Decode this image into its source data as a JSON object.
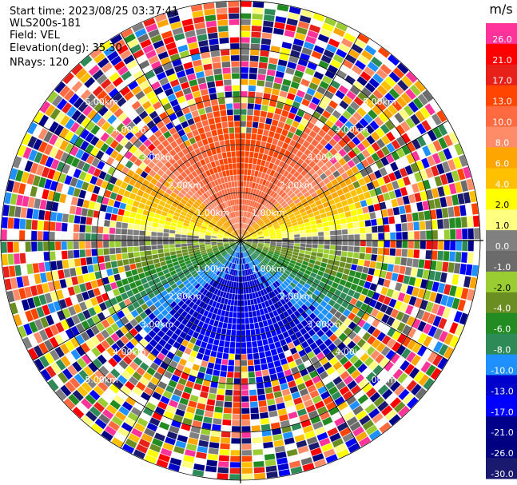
{
  "header": {
    "start_time": "Start time: 2023/08/25 03:37:41",
    "site": "WLS200s-181",
    "field": "Field: VEL",
    "elevation": "Elevation(deg): 35.30",
    "nrays": "NRays: 120"
  },
  "chart_data": {
    "type": "ppi",
    "field": "VEL",
    "n_rays": 120,
    "range_rings_km": [
      "1.00km",
      "2.00km",
      "3.00km",
      "4.00km",
      "5.00km"
    ],
    "max_range_km": 5.0,
    "colorbar": {
      "unit": "m/s",
      "levels": [
        "26.0",
        "21.0",
        "17.0",
        "13.0",
        "10.0",
        "8.0",
        "6.0",
        "4.0",
        "2.0",
        "1.0",
        "0.0",
        "-1.0",
        "-2.0",
        "-4.0",
        "-6.0",
        "-8.0",
        "-10.0",
        "-13.0",
        "-17.0",
        "-21.0",
        "-26.0",
        "-30.0"
      ],
      "colors": [
        "#ff3399",
        "#ff0000",
        "#e8201a",
        "#ff4500",
        "#ff6a40",
        "#ff8c69",
        "#ffa500",
        "#ffc000",
        "#ffff00",
        "#ffff80",
        "#808080",
        "#6b6b6b",
        "#9acd32",
        "#6b8e23",
        "#228b22",
        "#2e8b57",
        "#1e90ff",
        "#0000cd",
        "#0000ff",
        "#00008b",
        "#000080",
        "#191970"
      ]
    },
    "pattern": {
      "toward_north": "positive velocities (red/orange)",
      "toward_south": "negative velocities (blue)",
      "beyond_range_km": 2.5,
      "far_range": "noisy random colors"
    }
  }
}
